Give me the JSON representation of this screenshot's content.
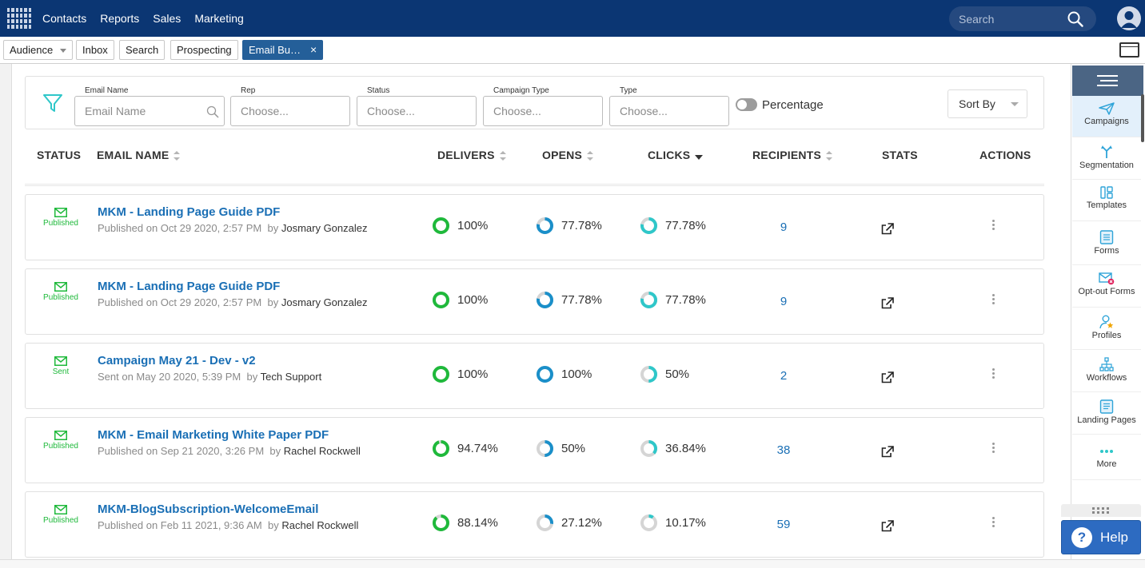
{
  "nav": {
    "links": [
      "Contacts",
      "Reports",
      "Sales",
      "Marketing"
    ],
    "search_placeholder": "Search"
  },
  "tabs": {
    "audience": "Audience",
    "inbox": "Inbox",
    "search": "Search",
    "prospecting": "Prospecting",
    "email_builder": "Email Bu…",
    "close": "×"
  },
  "filters": {
    "email_name_label": "Email Name",
    "email_name_placeholder": "Email Name",
    "rep_label": "Rep",
    "rep_value": "Choose...",
    "status_label": "Status",
    "status_value": "Choose...",
    "campaign_type_label": "Campaign Type",
    "campaign_type_value": "Choose...",
    "type_label": "Type",
    "type_value": "Choose...",
    "percentage_label": "Percentage",
    "sort_by": "Sort By"
  },
  "table": {
    "headers": {
      "status": "STATUS",
      "email_name": "EMAIL NAME",
      "delivers": "DELIVERS",
      "opens": "OPENS",
      "clicks": "CLICKS",
      "recipients": "RECIPIENTS",
      "stats": "STATS",
      "actions": "ACTIONS"
    },
    "rows": [
      {
        "status": "Published",
        "name": "MKM - Landing Page Guide PDF",
        "sub": "Published on Oct 29 2020, 2:57 PM",
        "by_prefix": "by",
        "by": "Josmary Gonzalez",
        "delivers": "100%",
        "delivers_frac": 1.0,
        "opens": "77.78%",
        "opens_frac": 0.7778,
        "clicks": "77.78%",
        "clicks_frac": 0.7778,
        "recipients": "9"
      },
      {
        "status": "Published",
        "name": "MKM - Landing Page Guide PDF",
        "sub": "Published on Oct 29 2020, 2:57 PM",
        "by_prefix": "by",
        "by": "Josmary Gonzalez",
        "delivers": "100%",
        "delivers_frac": 1.0,
        "opens": "77.78%",
        "opens_frac": 0.7778,
        "clicks": "77.78%",
        "clicks_frac": 0.7778,
        "recipients": "9"
      },
      {
        "status": "Sent",
        "name": "Campaign May 21 - Dev - v2",
        "sub": "Sent on May 20 2020, 5:39 PM",
        "by_prefix": "by",
        "by": "Tech Support",
        "delivers": "100%",
        "delivers_frac": 1.0,
        "opens": "100%",
        "opens_frac": 1.0,
        "clicks": "50%",
        "clicks_frac": 0.5,
        "recipients": "2"
      },
      {
        "status": "Published",
        "name": "MKM - Email Marketing White Paper PDF",
        "sub": "Published on Sep 21 2020, 3:26 PM",
        "by_prefix": "by",
        "by": "Rachel Rockwell",
        "delivers": "94.74%",
        "delivers_frac": 0.9474,
        "opens": "50%",
        "opens_frac": 0.5,
        "clicks": "36.84%",
        "clicks_frac": 0.3684,
        "recipients": "38"
      },
      {
        "status": "Published",
        "name": "MKM-BlogSubscription-WelcomeEmail",
        "sub": "Published on Feb 11 2021, 9:36 AM",
        "by_prefix": "by",
        "by": "Rachel Rockwell",
        "delivers": "88.14%",
        "delivers_frac": 0.8814,
        "opens": "27.12%",
        "opens_frac": 0.2712,
        "clicks": "10.17%",
        "clicks_frac": 0.1017,
        "recipients": "59"
      }
    ]
  },
  "sidebar": {
    "items": [
      {
        "label": "Campaigns",
        "icon": "paper-plane-icon"
      },
      {
        "label": "Segmentation",
        "icon": "fork-icon"
      },
      {
        "label": "Templates",
        "icon": "layout-icon"
      },
      {
        "label": "Forms",
        "icon": "form-icon"
      },
      {
        "label": "Opt-out Forms",
        "icon": "mail-x-icon"
      },
      {
        "label": "Profiles",
        "icon": "user-star-icon"
      },
      {
        "label": "Workflows",
        "icon": "workflow-icon"
      },
      {
        "label": "Landing Pages",
        "icon": "page-icon"
      },
      {
        "label": "More",
        "icon": "dots-icon"
      }
    ]
  },
  "help": {
    "label": "Help",
    "q": "?"
  },
  "colors": {
    "nav_bg": "#0b3673",
    "link": "#1a6fb5",
    "green": "#1fb93b",
    "opens_blue": "#1a8fc9",
    "clicks_teal": "#2fc7c9",
    "track_grey": "#d5d5d5"
  }
}
